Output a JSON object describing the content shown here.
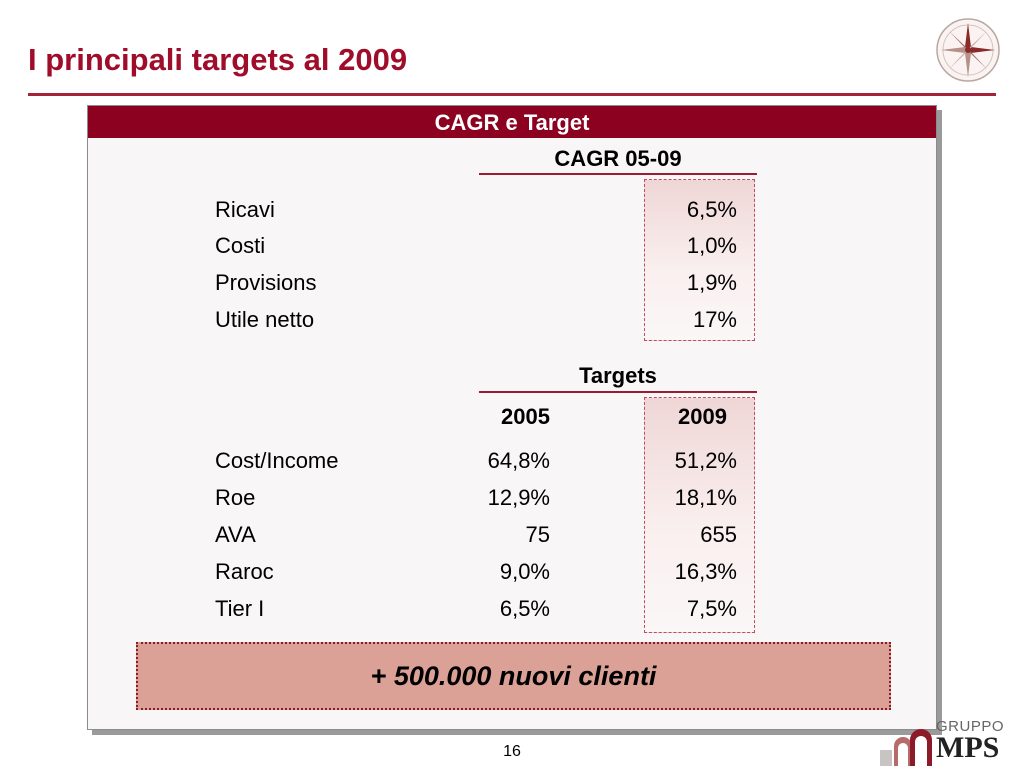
{
  "slide": {
    "title": "I principali targets al 2009",
    "page_number": "16"
  },
  "panel": {
    "header": "CAGR e Target",
    "cagr": {
      "heading": "CAGR 05-09",
      "rows": [
        {
          "label": "Ricavi",
          "value": "6,5%"
        },
        {
          "label": "Costi",
          "value": "1,0%"
        },
        {
          "label": "Provisions",
          "value": "1,9%"
        },
        {
          "label": "Utile netto",
          "value": "17%"
        }
      ]
    },
    "targets": {
      "heading": "Targets",
      "col_2005": "2005",
      "col_2009": "2009",
      "rows": [
        {
          "label": "Cost/Income",
          "y2005": "64,8%",
          "y2009": "51,2%"
        },
        {
          "label": "Roe",
          "y2005": "12,9%",
          "y2009": "18,1%"
        },
        {
          "label": "AVA",
          "y2005": "75",
          "y2009": "655"
        },
        {
          "label": "Raroc",
          "y2005": "9,0%",
          "y2009": "16,3%"
        },
        {
          "label": "Tier I",
          "y2005": "6,5%",
          "y2009": "7,5%"
        }
      ]
    },
    "banner": "+ 500.000 nuovi clienti"
  },
  "logo": {
    "top": "GRUPPO",
    "main": "MPS",
    "icon": "mps-arches-icon"
  },
  "decoration": {
    "compass_icon": "compass-rose-icon"
  },
  "colors": {
    "accent": "#a00d2a",
    "header_bg": "#8c0020",
    "banner_bg": "#dca196"
  }
}
